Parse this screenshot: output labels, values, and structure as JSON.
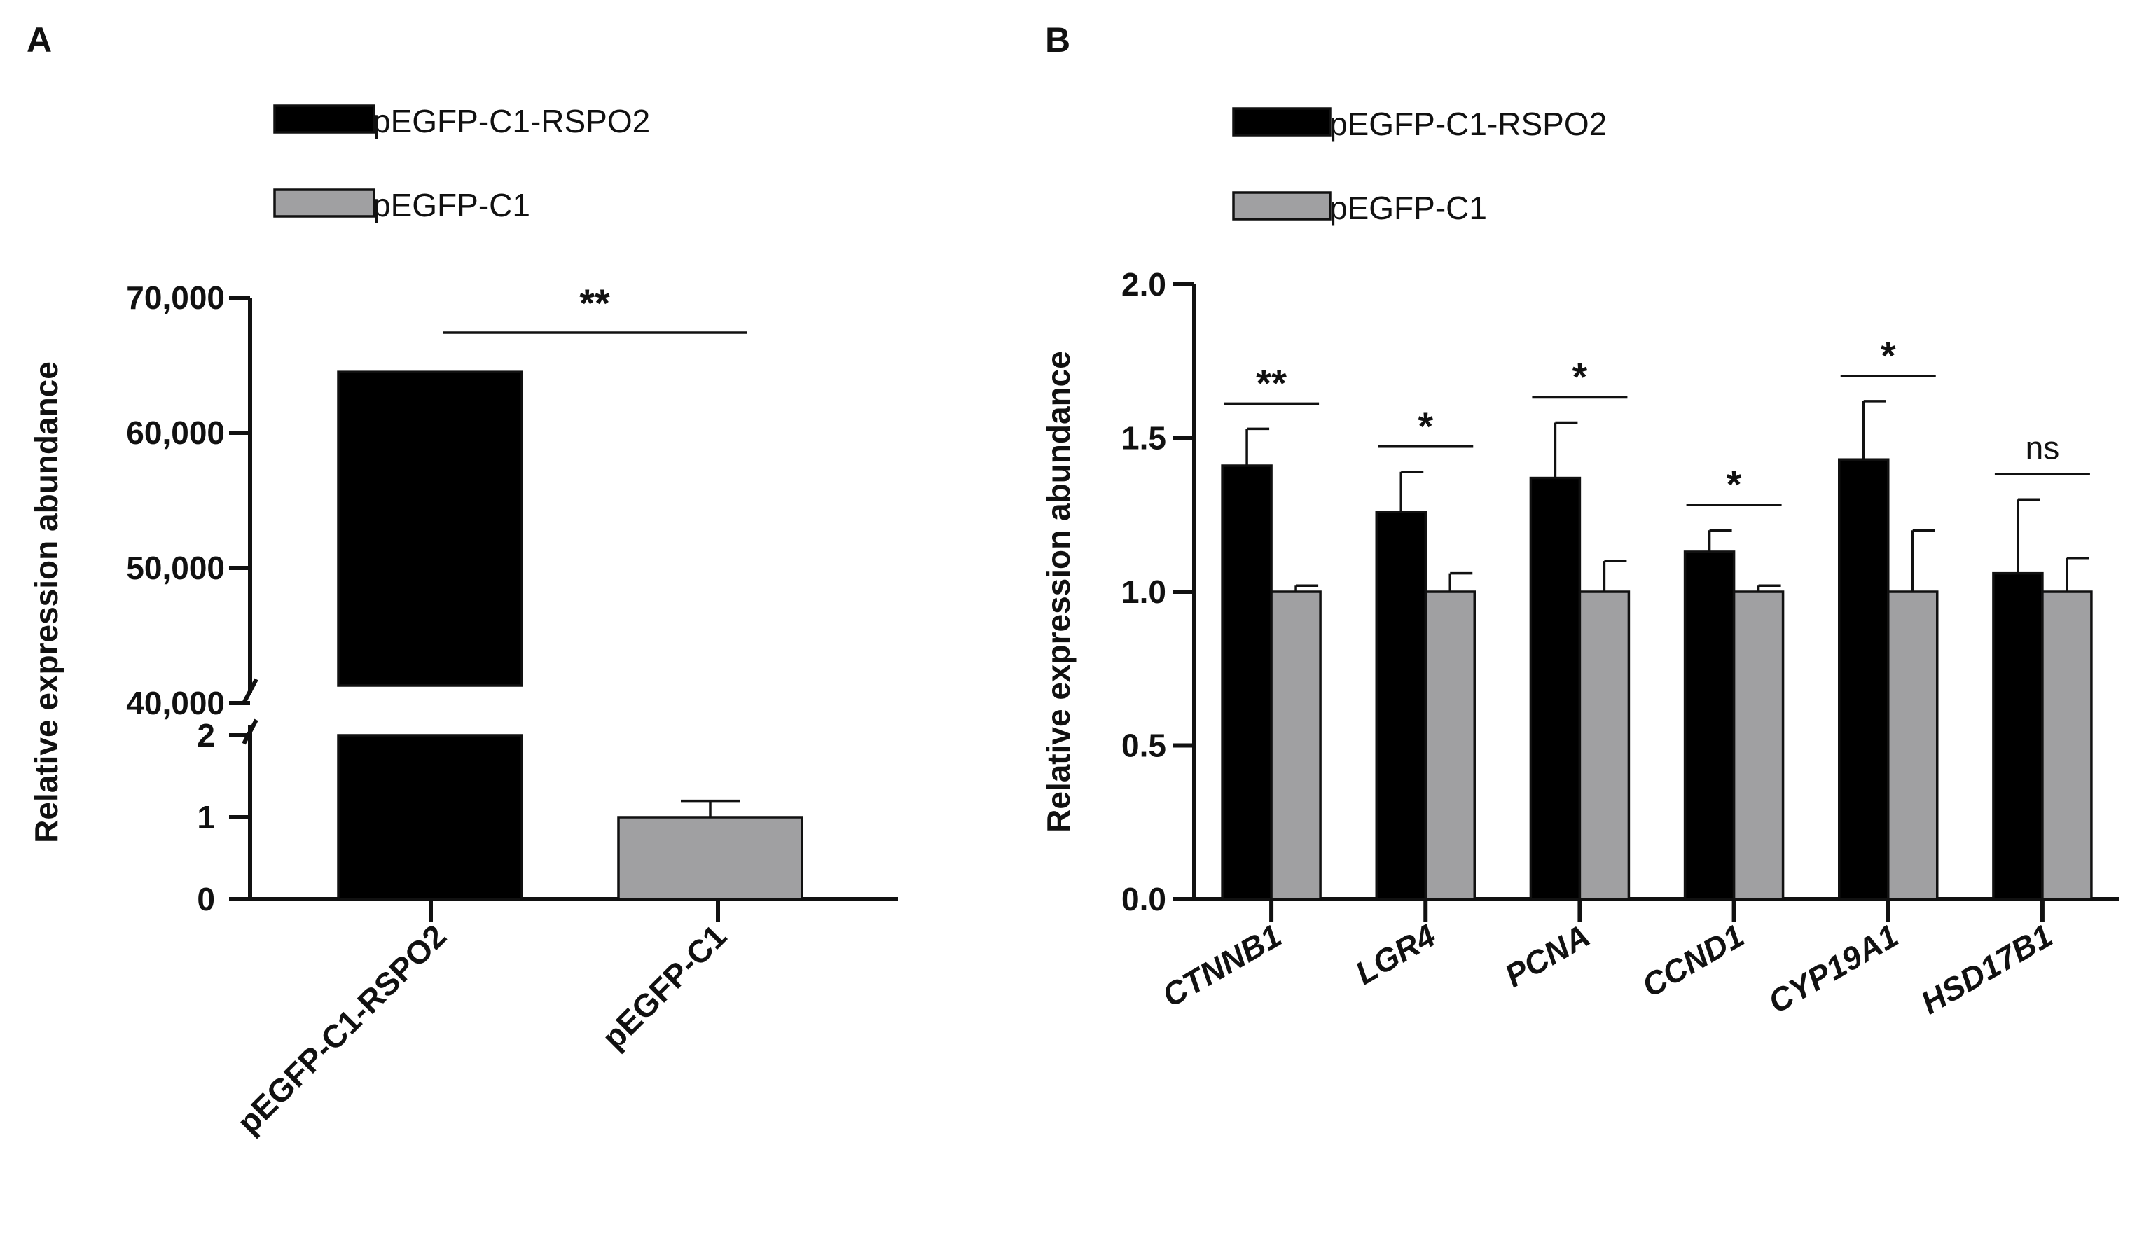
{
  "colors": {
    "series_rspo2": "#000000",
    "series_c1": "#a0a0a2",
    "axis": "#111111"
  },
  "chart_data": [
    {
      "panel_label": "A",
      "type": "bar",
      "broken_axis": true,
      "ylabel": "Relative expression abundance",
      "ylim_lower": [
        0,
        2
      ],
      "ylim_upper": [
        40000,
        70000
      ],
      "yticks_lower": [
        "0",
        "1",
        "2"
      ],
      "yticks_upper": [
        "40,000",
        "50,000",
        "60,000",
        "70,000"
      ],
      "categories": [
        "pEGFP-C1-RSPO2",
        "pEGFP-C1"
      ],
      "legend": [
        "pEGFP-C1-RSPO2",
        "pEGFP-C1"
      ],
      "values": [
        64500,
        1.0
      ],
      "errors": [
        0,
        0.2
      ],
      "significance": "**"
    },
    {
      "panel_label": "B",
      "type": "bar",
      "ylabel": "Relative expression abundance",
      "ylim": [
        0.0,
        2.0
      ],
      "yticks": [
        "0.0",
        "0.5",
        "1.0",
        "1.5",
        "2.0"
      ],
      "categories": [
        "CTNNB1",
        "LGR4",
        "PCNA",
        "CCND1",
        "CYP19A1",
        "HSD17B1"
      ],
      "series": [
        {
          "name": "pEGFP-C1-RSPO2",
          "values": [
            1.41,
            1.26,
            1.37,
            1.13,
            1.43,
            1.06
          ],
          "errors": [
            0.12,
            0.13,
            0.18,
            0.07,
            0.19,
            0.24
          ]
        },
        {
          "name": "pEGFP-C1",
          "values": [
            1.0,
            1.0,
            1.0,
            1.0,
            1.0,
            1.0
          ],
          "errors": [
            0.02,
            0.06,
            0.1,
            0.02,
            0.2,
            0.11
          ]
        }
      ],
      "significance": [
        "**",
        "*",
        "*",
        "*",
        "*",
        "ns"
      ]
    }
  ]
}
